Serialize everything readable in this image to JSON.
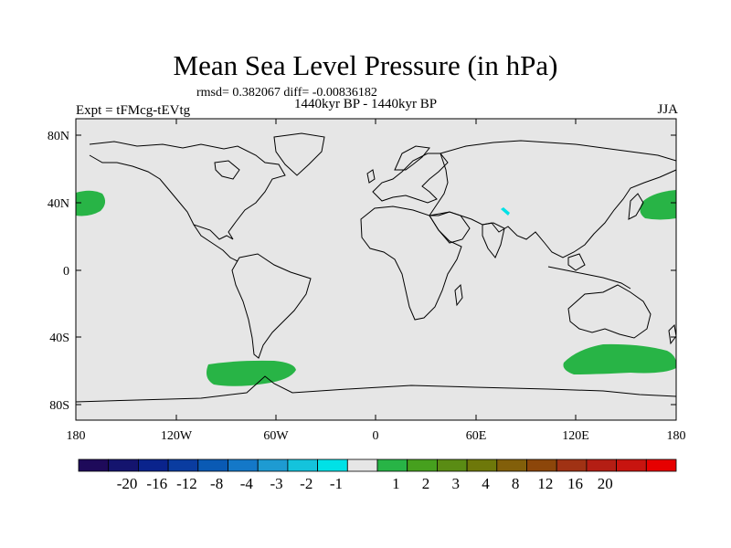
{
  "title": "Mean Sea Level Pressure (in hPa)",
  "stats": "rmsd= 0.382067 diff= -0.00836182",
  "period": "1440kyr BP - 1440kyr BP",
  "experiment": "Expt = tFMcg-tEVtg",
  "season": "JJA",
  "map": {
    "lat_labels": [
      "80N",
      "40N",
      "0",
      "40S",
      "80S"
    ],
    "lon_labels": [
      "180",
      "120W",
      "60W",
      "0",
      "60E",
      "120E",
      "180"
    ],
    "ocean_color": "#e6e6e6",
    "coast_color": "#000000"
  },
  "colorbar": {
    "colors": [
      "#1e0a5a",
      "#14146e",
      "#0a238c",
      "#0a3ca0",
      "#0a5ab4",
      "#1478c8",
      "#1e9bd2",
      "#14c3dc",
      "#00e1e6",
      "#e6e6e6",
      "#28b446",
      "#46a01e",
      "#5a8c14",
      "#6e780a",
      "#825f0a",
      "#8c460a",
      "#a03214",
      "#b41e14",
      "#c8140f",
      "#e60000"
    ],
    "labels": [
      "-20",
      "-16",
      "-12",
      "-8",
      "-4",
      "-3",
      "-2",
      "-1",
      "1",
      "2",
      "3",
      "4",
      "8",
      "12",
      "16",
      "20"
    ]
  },
  "anomaly_regions": [
    {
      "name": "North Atlantic-West Pacific high (west edge)",
      "value": "1 to 2",
      "color": "#28b446"
    },
    {
      "name": "North Pacific high",
      "value": "1 to 2",
      "color": "#28b446"
    },
    {
      "name": "South Pacific off Antarctica",
      "value": "1 to 2",
      "color": "#28b446"
    },
    {
      "name": "Southern Ocean south of Australia",
      "value": "1 to 2",
      "color": "#28b446"
    },
    {
      "name": "Tibetan Plateau",
      "value": "-1 to -2",
      "color": "#00e1e6"
    }
  ]
}
